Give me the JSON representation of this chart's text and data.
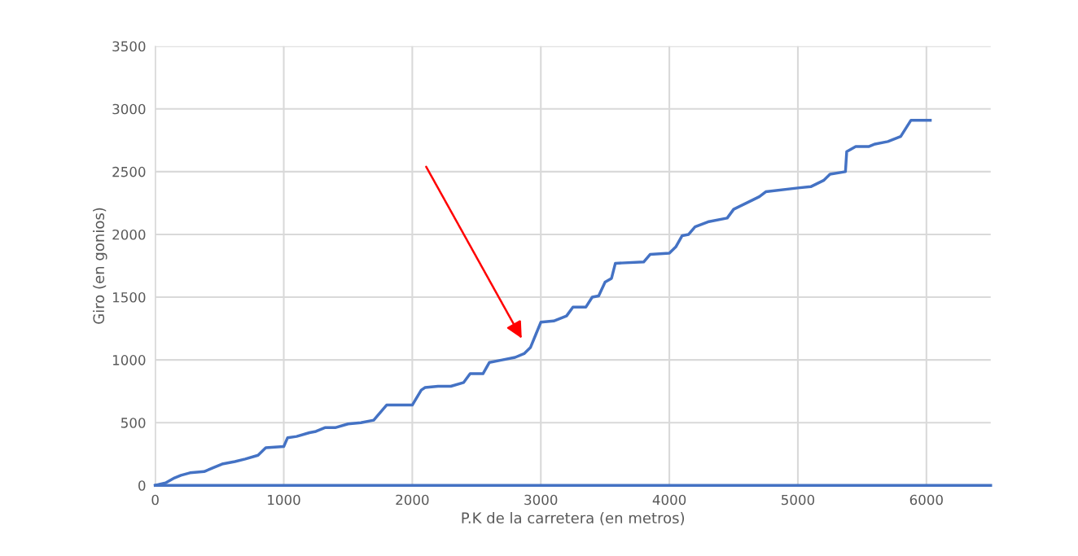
{
  "chart_data": {
    "type": "line",
    "xlabel": "P.K de la carretera (en metros)",
    "ylabel": "Giro (en gonios)",
    "xlim": [
      0,
      6500
    ],
    "xticks": [
      0,
      1000,
      2000,
      3000,
      4000,
      5000,
      6000
    ],
    "ylim": [
      0,
      3500
    ],
    "yticks": [
      0,
      500,
      1000,
      1500,
      2000,
      2500,
      3000,
      3500
    ],
    "grid": true,
    "legend": false,
    "marker": "none",
    "line_style": "solid",
    "series": [
      {
        "color": "#4472c4",
        "x": [
          0,
          80,
          150,
          200,
          270,
          380,
          450,
          520,
          620,
          700,
          800,
          860,
          1000,
          1030,
          1100,
          1200,
          1250,
          1320,
          1400,
          1500,
          1600,
          1700,
          1750,
          1800,
          2000,
          2070,
          2100,
          2200,
          2300,
          2400,
          2450,
          2550,
          2600,
          2700,
          2800,
          2870,
          2920,
          2960,
          3000,
          3100,
          3200,
          3250,
          3350,
          3400,
          3450,
          3500,
          3550,
          3580,
          3800,
          3850,
          4000,
          4050,
          4100,
          4150,
          4200,
          4300,
          4450,
          4500,
          4600,
          4700,
          4750,
          5000,
          5100,
          5200,
          5250,
          5370,
          5380,
          5450,
          5550,
          5600,
          5700,
          5800,
          5880,
          6030
        ],
        "values": [
          0,
          20,
          60,
          80,
          100,
          110,
          140,
          170,
          190,
          210,
          240,
          300,
          310,
          380,
          390,
          420,
          430,
          460,
          460,
          490,
          500,
          520,
          580,
          640,
          640,
          760,
          780,
          790,
          790,
          820,
          890,
          890,
          980,
          1000,
          1020,
          1050,
          1100,
          1200,
          1300,
          1310,
          1350,
          1420,
          1420,
          1500,
          1510,
          1620,
          1650,
          1770,
          1780,
          1840,
          1850,
          1900,
          1990,
          2000,
          2060,
          2100,
          2130,
          2200,
          2250,
          2300,
          2340,
          2370,
          2380,
          2430,
          2480,
          2500,
          2660,
          2700,
          2700,
          2720,
          2740,
          2780,
          2910,
          2910
        ]
      },
      {
        "color": "#4472c4",
        "x": [
          0,
          6500
        ],
        "values": [
          0,
          0
        ]
      }
    ]
  }
}
